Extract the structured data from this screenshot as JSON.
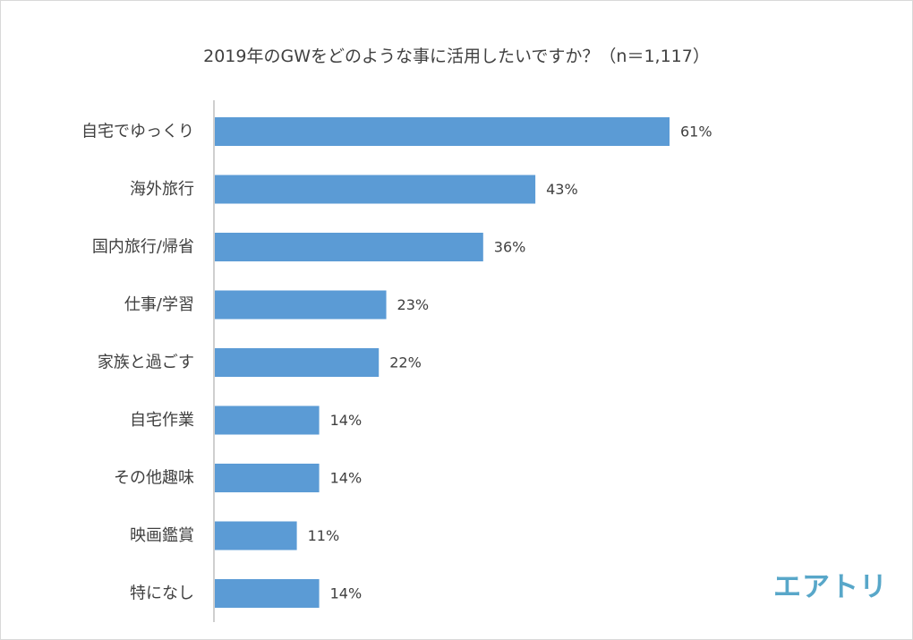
{
  "chart_data": {
    "type": "bar",
    "orientation": "horizontal",
    "title": "2019年のGWをどのような事に活用したいですか？（n＝1,117）",
    "categories": [
      "自宅でゆっくり",
      "海外旅行",
      "国内旅行/帰省",
      "仕事/学習",
      "家族と過ごす",
      "自宅作業",
      "その他趣味",
      "映画鑑賞",
      "特になし"
    ],
    "values": [
      61,
      43,
      36,
      23,
      22,
      14,
      14,
      11,
      14
    ],
    "value_labels": [
      "61%",
      "43%",
      "36%",
      "23%",
      "22%",
      "14%",
      "14%",
      "11%",
      "14%"
    ],
    "xlim": [
      0,
      100
    ],
    "xlabel": "",
    "ylabel": "",
    "grid": false,
    "bar_color": "#5b9bd5"
  },
  "logo_text": "エアトリ",
  "colors": {
    "axis": "#bfbfbf",
    "text": "#404040",
    "logo": "#58a7c9"
  }
}
